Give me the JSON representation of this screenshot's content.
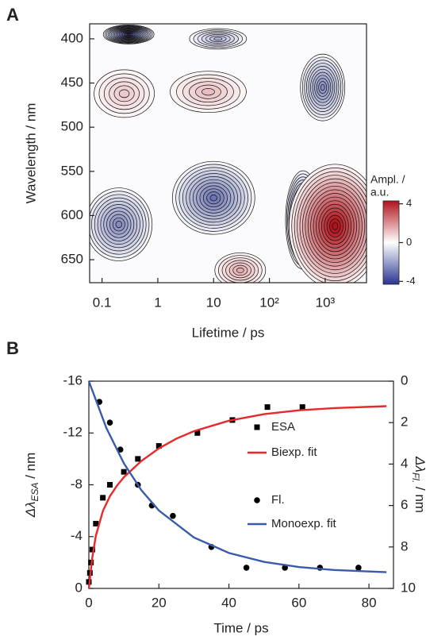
{
  "chart_data": [
    {
      "type": "contour",
      "panel_label": "A",
      "xlabel": "Lifetime / ps",
      "ylabel": "Wavelength / nm",
      "xscale": "log",
      "xlim": [
        0.06,
        5500
      ],
      "xticks": [
        0.1,
        1,
        10,
        {
          "value": 100,
          "label": "10²"
        },
        {
          "value": 1000,
          "label": "10³"
        }
      ],
      "ylim": [
        383,
        676
      ],
      "y_inverted": true,
      "yticks": [
        400,
        450,
        500,
        550,
        600,
        650
      ],
      "colorbar_label": [
        "Ampl. /",
        "a.u."
      ],
      "colorbar_lim": [
        -4.3,
        4.3
      ],
      "colorbar_ticks": [
        4,
        0,
        -4
      ],
      "colors": [
        "#2a3590",
        "#ffffff",
        "#b1121c"
      ],
      "peaks": [
        {
          "lifetime": 0.3,
          "wavelength": 395,
          "amplitude": -4
        },
        {
          "lifetime": 0.25,
          "wavelength": 462,
          "amplitude": 1
        },
        {
          "lifetime": 8,
          "wavelength": 460,
          "amplitude": 1.2
        },
        {
          "lifetime": 12,
          "wavelength": 400,
          "amplitude": -1.5
        },
        {
          "lifetime": 900,
          "wavelength": 455,
          "amplitude": -2.5
        },
        {
          "lifetime": 0.2,
          "wavelength": 610,
          "amplitude": -2.5
        },
        {
          "lifetime": 10,
          "wavelength": 580,
          "amplitude": -3
        },
        {
          "lifetime": 30,
          "wavelength": 662,
          "amplitude": 1.5
        },
        {
          "lifetime": 400,
          "wavelength": 605,
          "amplitude": -4
        },
        {
          "lifetime": 1500,
          "wavelength": 612,
          "amplitude": 4.5
        }
      ]
    },
    {
      "type": "scatter",
      "panel_label": "B",
      "xlabel": "Time / ps",
      "ylabel": "Δλ",
      "ylabel_sub": "ESA",
      "ylabel_unit": " / nm",
      "y2label": "Δλ",
      "y2label_sub": "Fl.",
      "y2label_unit": " / nm",
      "xlim": [
        0,
        87
      ],
      "xticks": [
        0,
        20,
        40,
        60,
        80
      ],
      "ylim": [
        0,
        -16
      ],
      "yticks": [
        0,
        -4,
        -8,
        -12,
        -16
      ],
      "y2lim": [
        10,
        0
      ],
      "y2ticks": [
        0,
        2,
        4,
        6,
        8,
        10
      ],
      "series": [
        {
          "name": "ESA",
          "kind": "scatter",
          "marker": "square",
          "color": "#000000",
          "x": [
            0,
            0.3,
            0.6,
            1,
            2,
            4,
            6,
            10,
            14,
            20,
            31,
            41,
            51,
            61
          ],
          "values": [
            -0.5,
            -1.2,
            -2,
            -3,
            -5,
            -7,
            -8,
            -9,
            -10,
            -11,
            -12,
            -13,
            -14,
            -14
          ]
        },
        {
          "name": "Biexp. fit",
          "kind": "line",
          "color": "#e8282b",
          "x": [
            0,
            1,
            2,
            4,
            6,
            8,
            10,
            15,
            20,
            25,
            30,
            40,
            50,
            60,
            70,
            85
          ],
          "values": [
            0,
            -2.41,
            -4.05,
            -5.98,
            -7.11,
            -7.92,
            -8.58,
            -9.84,
            -10.81,
            -11.56,
            -12.14,
            -12.95,
            -13.45,
            -13.75,
            -13.92,
            -14.07
          ]
        },
        {
          "name": "Fl.",
          "kind": "scatter",
          "marker": "circle",
          "color": "#000000",
          "axis": "y2",
          "x": [
            3,
            6,
            9,
            14,
            18,
            24,
            35,
            45,
            56,
            66,
            77
          ],
          "values": [
            1,
            2,
            3.3,
            5,
            6,
            6.5,
            8,
            9,
            9,
            9,
            9
          ]
        },
        {
          "name": "Monoexp. fit",
          "kind": "line",
          "color": "#3a5ba8",
          "axis": "y2",
          "x": [
            0,
            5,
            10,
            15,
            20,
            30,
            40,
            50,
            60,
            70,
            85
          ],
          "values": [
            0,
            2.26,
            3.96,
            5.26,
            6.24,
            7.54,
            8.29,
            8.72,
            8.97,
            9.11,
            9.22
          ]
        }
      ]
    }
  ]
}
